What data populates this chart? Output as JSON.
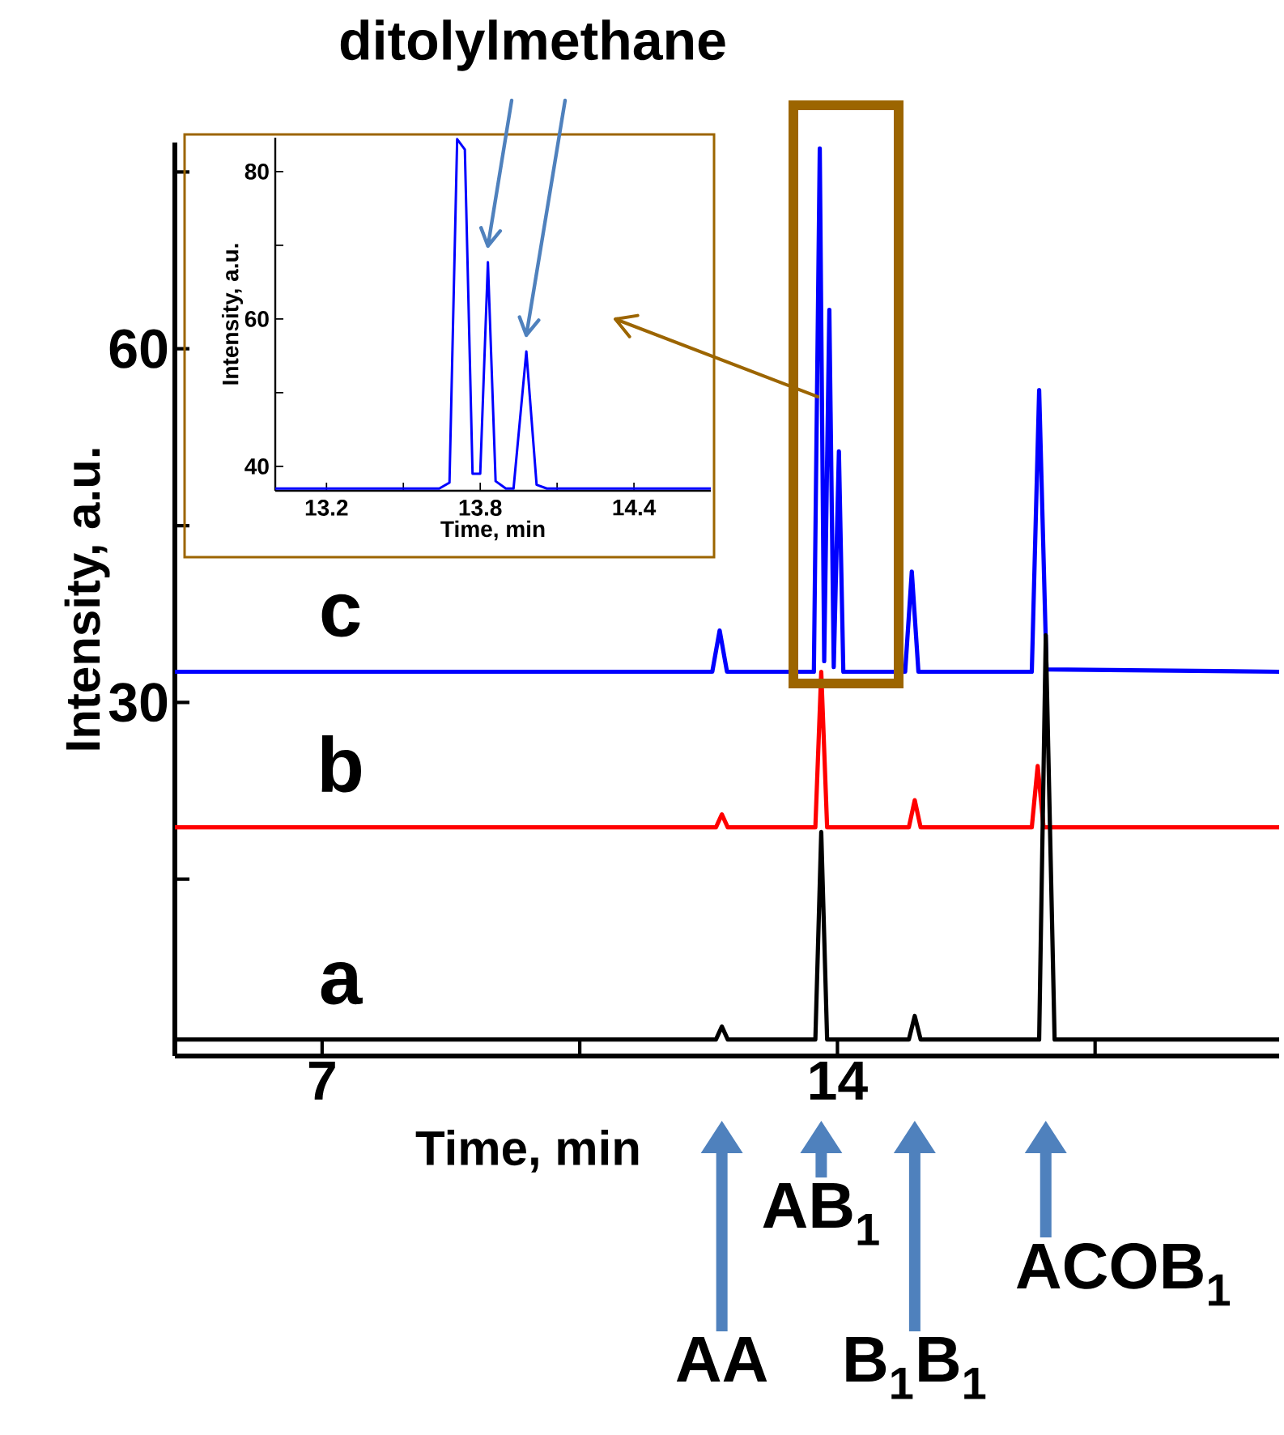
{
  "chart_data": [
    {
      "type": "line",
      "xlabel": "Time, min",
      "ylabel": "Intensity, a.u.",
      "xlim": [
        5,
        20
      ],
      "ylim": [
        0,
        77.5
      ],
      "xticks": [
        7,
        {
          "value": 10.5,
          "label": null
        },
        14,
        {
          "value": 17.5,
          "label": null
        }
      ],
      "yticks": [
        {
          "value": 15,
          "label": null
        },
        30,
        {
          "value": 45,
          "label": null
        },
        60,
        {
          "value": 75,
          "label": null
        }
      ],
      "series": [
        {
          "name": "a",
          "color": "#000000",
          "x": [
            5.0,
            12.35,
            12.43,
            12.51,
            13.7,
            13.78,
            13.86,
            14.97,
            15.05,
            15.13,
            16.74,
            16.83,
            16.95,
            20.0
          ],
          "values": [
            1.4,
            1.4,
            2.5,
            1.4,
            1.4,
            19.0,
            1.4,
            1.4,
            3.4,
            1.4,
            1.4,
            35.7,
            1.4,
            1.4
          ]
        },
        {
          "name": "b",
          "color": "#ff0000",
          "x": [
            5.0,
            12.35,
            12.43,
            12.51,
            13.7,
            13.78,
            13.86,
            14.97,
            15.05,
            15.13,
            16.64,
            16.72,
            16.8,
            20.0
          ],
          "values": [
            19.4,
            19.4,
            20.5,
            19.4,
            19.4,
            32.6,
            19.4,
            19.4,
            21.7,
            19.4,
            19.4,
            24.6,
            19.4,
            19.4
          ]
        },
        {
          "name": "c",
          "color": "#0000ff",
          "x": [
            5.0,
            12.3,
            12.4,
            12.5,
            13.68,
            13.76,
            13.82,
            13.89,
            13.95,
            14.02,
            14.08,
            14.92,
            15.01,
            15.1,
            16.64,
            16.74,
            16.84,
            20.0
          ],
          "values": [
            32.6,
            32.6,
            36.1,
            32.6,
            32.6,
            77.0,
            33.5,
            63.3,
            33.0,
            51.3,
            32.6,
            32.6,
            41.1,
            32.6,
            32.6,
            56.5,
            32.8,
            32.6
          ]
        }
      ],
      "annotations": [
        "AA",
        "AB$_{1}$",
        "B$_{1}$B$_{1}$",
        "ACOB$_{1}$"
      ]
    },
    {
      "type": "line",
      "xlabel": "Time, min",
      "ylabel": "Intensity, a.u.",
      "xlim": [
        13.0,
        14.7
      ],
      "ylim": [
        36.7,
        84.6
      ],
      "xticks": [
        13.2,
        {
          "value": 13.5,
          "label": null
        },
        13.8,
        {
          "value": 14.1,
          "label": null
        },
        14.4
      ],
      "yticks": [
        40,
        {
          "value": 50,
          "label": null
        },
        60,
        {
          "value": 70,
          "label": null
        },
        80
      ],
      "series": [
        {
          "color": "#0000ff",
          "x": [
            13.0,
            13.64,
            13.68,
            13.71,
            13.74,
            13.77,
            13.8,
            13.83,
            13.86,
            13.9,
            13.93,
            13.98,
            14.02,
            14.06,
            14.7
          ],
          "values": [
            37.0,
            37.0,
            37.8,
            84.4,
            83.0,
            39.0,
            39.0,
            67.7,
            38.0,
            37.0,
            37.0,
            55.6,
            37.5,
            37.0,
            37.0
          ]
        }
      ],
      "annotations": [
        "ditolylmethane"
      ]
    }
  ]
}
